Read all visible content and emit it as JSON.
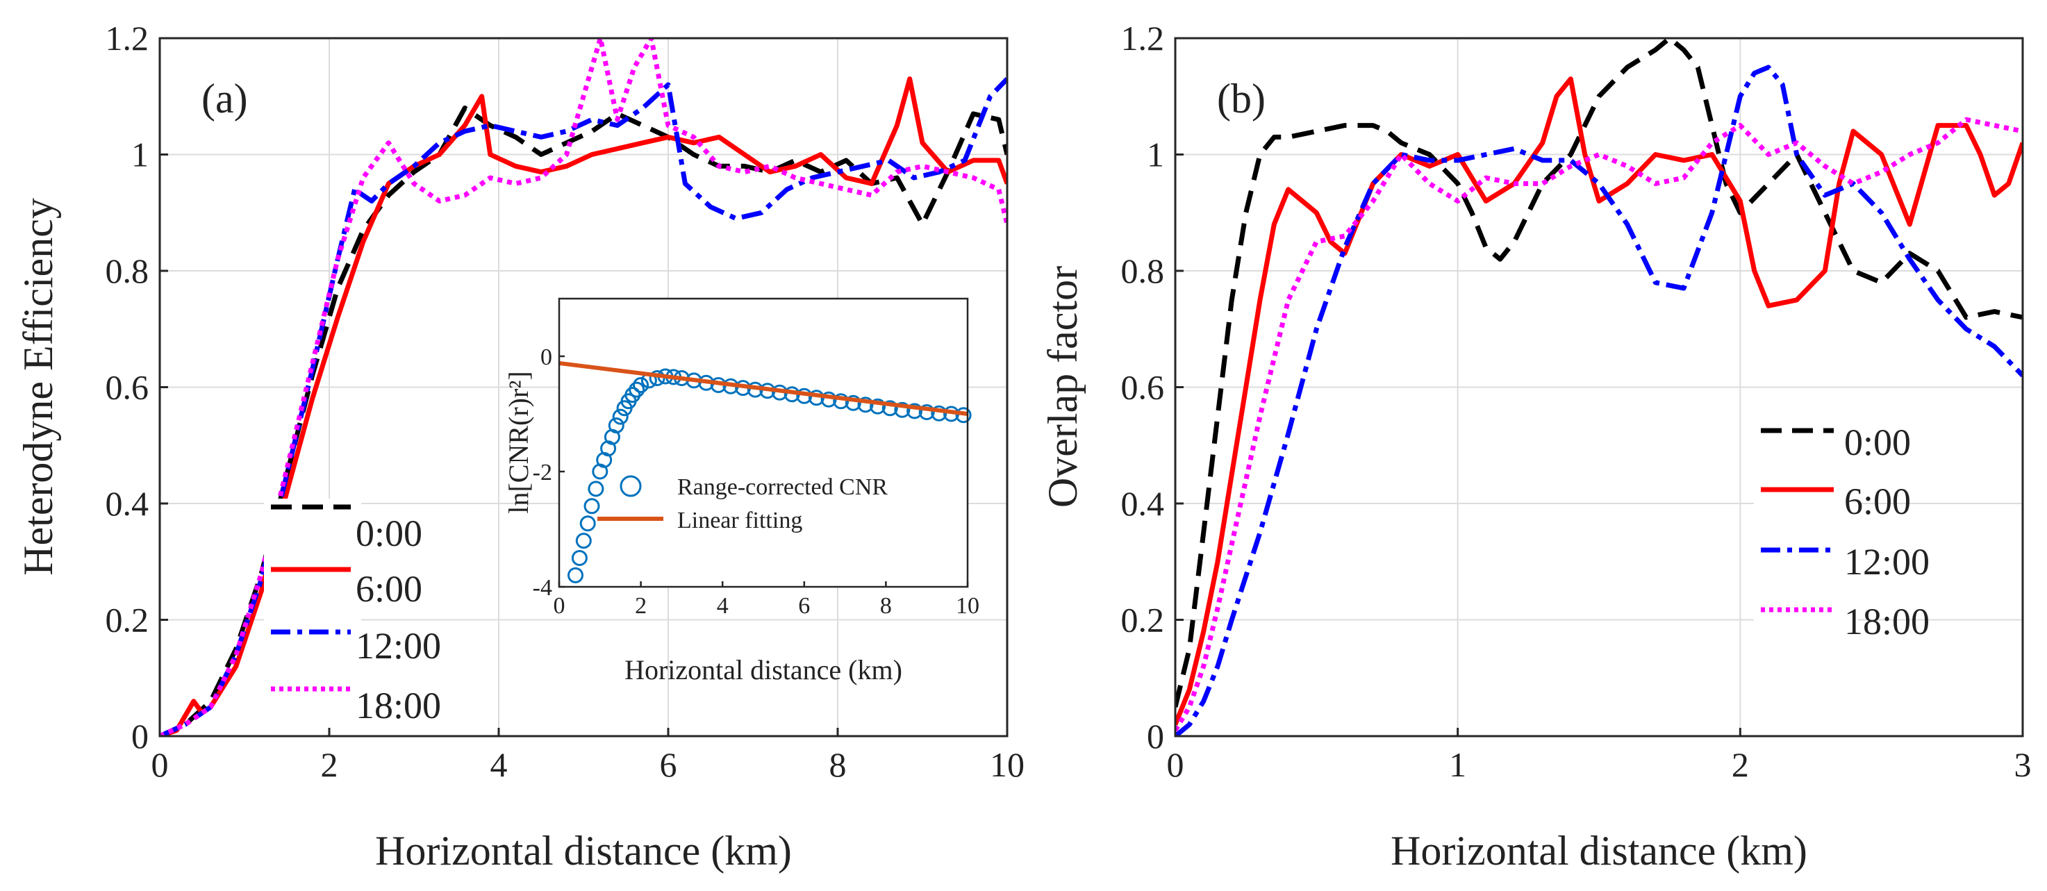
{
  "chart_data": [
    {
      "type": "line",
      "panel_label": "(a)",
      "xlabel": "Horizontal distance (km)",
      "ylabel": "Heterodyne Efficiency",
      "xlim": [
        0,
        10
      ],
      "ylim": [
        0,
        1.2
      ],
      "xticks": [
        "0",
        "2",
        "4",
        "6",
        "8",
        "10"
      ],
      "yticks": [
        "0",
        "0.2",
        "0.4",
        "0.6",
        "0.8",
        "1",
        "1.2"
      ],
      "grid": true,
      "legend": "lower-left",
      "series": [
        {
          "name": "0:00",
          "color": "#000000",
          "dash": "dashed",
          "x": [
            0,
            0.3,
            0.6,
            0.9,
            1.2,
            1.5,
            1.8,
            2.1,
            2.4,
            2.7,
            3.0,
            3.3,
            3.6,
            3.9,
            4.2,
            4.5,
            4.8,
            5.1,
            5.4,
            5.7,
            6.0,
            6.3,
            6.6,
            6.9,
            7.2,
            7.5,
            7.8,
            8.1,
            8.4,
            8.7,
            9.0,
            9.3,
            9.6,
            9.9,
            10
          ],
          "y": [
            0,
            0.02,
            0.06,
            0.15,
            0.28,
            0.45,
            0.62,
            0.77,
            0.87,
            0.93,
            0.97,
            1.0,
            1.08,
            1.05,
            1.03,
            1.0,
            1.02,
            1.04,
            1.07,
            1.05,
            1.03,
            1.0,
            0.98,
            0.98,
            0.97,
            0.99,
            0.97,
            0.99,
            0.95,
            0.96,
            0.88,
            0.97,
            1.07,
            1.06,
            1.0
          ]
        },
        {
          "name": "6:00",
          "color": "#ff0000",
          "dash": "solid",
          "x": [
            0,
            0.2,
            0.4,
            0.5,
            0.6,
            0.9,
            1.2,
            1.5,
            1.8,
            2.1,
            2.4,
            2.7,
            3.0,
            3.3,
            3.6,
            3.8,
            3.9,
            4.2,
            4.5,
            4.8,
            5.1,
            5.4,
            5.7,
            6.0,
            6.3,
            6.6,
            6.9,
            7.2,
            7.5,
            7.8,
            8.1,
            8.4,
            8.7,
            8.85,
            9.0,
            9.3,
            9.6,
            9.9,
            10
          ],
          "y": [
            0,
            0.01,
            0.06,
            0.04,
            0.05,
            0.12,
            0.25,
            0.42,
            0.58,
            0.72,
            0.85,
            0.95,
            0.98,
            1.0,
            1.05,
            1.1,
            1.0,
            0.98,
            0.97,
            0.98,
            1.0,
            1.01,
            1.02,
            1.03,
            1.02,
            1.03,
            1.0,
            0.97,
            0.98,
            1.0,
            0.96,
            0.95,
            1.05,
            1.13,
            1.02,
            0.97,
            0.99,
            0.99,
            0.95
          ]
        },
        {
          "name": "12:00",
          "color": "#0000ff",
          "dash": "dashdot",
          "x": [
            0,
            0.3,
            0.6,
            0.9,
            1.2,
            1.5,
            1.8,
            2.1,
            2.3,
            2.5,
            2.7,
            3.0,
            3.3,
            3.6,
            3.9,
            4.2,
            4.5,
            4.8,
            5.1,
            5.4,
            5.7,
            6.0,
            6.2,
            6.5,
            6.8,
            7.1,
            7.4,
            7.7,
            8.0,
            8.3,
            8.6,
            8.9,
            9.2,
            9.5,
            9.8,
            10
          ],
          "y": [
            0,
            0.02,
            0.05,
            0.14,
            0.27,
            0.45,
            0.63,
            0.82,
            0.94,
            0.92,
            0.95,
            0.98,
            1.02,
            1.04,
            1.05,
            1.04,
            1.03,
            1.04,
            1.06,
            1.05,
            1.08,
            1.12,
            0.95,
            0.91,
            0.89,
            0.9,
            0.94,
            0.96,
            0.97,
            0.98,
            0.99,
            0.96,
            0.97,
            0.99,
            1.1,
            1.13
          ]
        },
        {
          "name": "18:00",
          "color": "#ff00ff",
          "dash": "dotted",
          "x": [
            0,
            0.3,
            0.6,
            0.9,
            1.2,
            1.5,
            1.8,
            2.1,
            2.4,
            2.7,
            3.0,
            3.3,
            3.6,
            3.9,
            4.2,
            4.5,
            4.8,
            5.0,
            5.2,
            5.4,
            5.6,
            5.8,
            6.0,
            6.3,
            6.6,
            6.9,
            7.2,
            7.5,
            7.8,
            8.1,
            8.4,
            8.7,
            9.0,
            9.3,
            9.6,
            9.9,
            10
          ],
          "y": [
            0,
            0.02,
            0.05,
            0.14,
            0.28,
            0.46,
            0.64,
            0.82,
            0.96,
            1.02,
            0.95,
            0.92,
            0.93,
            0.96,
            0.95,
            0.96,
            1.0,
            1.1,
            1.2,
            1.06,
            1.15,
            1.2,
            1.05,
            1.03,
            0.98,
            0.97,
            0.98,
            0.96,
            0.95,
            0.94,
            0.93,
            0.97,
            0.98,
            0.97,
            0.96,
            0.94,
            0.88
          ]
        }
      ],
      "inset": {
        "xlabel": "Horizontal distance (km)",
        "ylabel": "ln[CNR(r)r²]",
        "xlim": [
          0,
          10
        ],
        "ylim": [
          -4,
          1
        ],
        "xticks": [
          "0",
          "2",
          "4",
          "6",
          "8",
          "10"
        ],
        "yticks": [
          "-4",
          "-2",
          "0"
        ],
        "scatter_series": {
          "name": "Range-corrected CNR",
          "color": "#0072bd",
          "x": [
            0.4,
            0.5,
            0.6,
            0.7,
            0.8,
            0.9,
            1.0,
            1.1,
            1.2,
            1.3,
            1.4,
            1.5,
            1.6,
            1.7,
            1.8,
            1.9,
            2.0,
            2.2,
            2.4,
            2.6,
            2.8,
            3.0,
            3.3,
            3.6,
            3.9,
            4.2,
            4.5,
            4.8,
            5.1,
            5.4,
            5.7,
            6.0,
            6.3,
            6.6,
            6.9,
            7.2,
            7.5,
            7.8,
            8.1,
            8.4,
            8.7,
            9.0,
            9.3,
            9.6,
            9.9
          ],
          "y": [
            -3.8,
            -3.5,
            -3.2,
            -2.9,
            -2.6,
            -2.3,
            -2.0,
            -1.8,
            -1.6,
            -1.4,
            -1.2,
            -1.05,
            -0.9,
            -0.78,
            -0.67,
            -0.58,
            -0.5,
            -0.42,
            -0.38,
            -0.35,
            -0.36,
            -0.38,
            -0.42,
            -0.46,
            -0.5,
            -0.52,
            -0.55,
            -0.58,
            -0.6,
            -0.63,
            -0.66,
            -0.69,
            -0.72,
            -0.75,
            -0.78,
            -0.81,
            -0.84,
            -0.87,
            -0.9,
            -0.93,
            -0.95,
            -0.97,
            -0.99,
            -1.0,
            -1.02
          ]
        },
        "line_series": {
          "name": "Linear fitting",
          "color": "#d95319",
          "x": [
            0,
            10
          ],
          "y": [
            -0.12,
            -1.0
          ]
        }
      }
    },
    {
      "type": "line",
      "panel_label": "(b)",
      "xlabel": "Horizontal distance (km)",
      "ylabel": "Overlap factor",
      "xlim": [
        0,
        3
      ],
      "ylim": [
        0,
        1.2
      ],
      "xticks": [
        "0",
        "1",
        "2",
        "3"
      ],
      "yticks": [
        "0",
        "0.2",
        "0.4",
        "0.6",
        "0.8",
        "1",
        "1.2"
      ],
      "grid": true,
      "legend": "center-right",
      "series": [
        {
          "name": "0:00",
          "color": "#000000",
          "dash": "dashed",
          "x": [
            0,
            0.05,
            0.1,
            0.15,
            0.2,
            0.25,
            0.3,
            0.35,
            0.4,
            0.5,
            0.6,
            0.7,
            0.75,
            0.8,
            0.9,
            1.0,
            1.05,
            1.1,
            1.15,
            1.2,
            1.3,
            1.4,
            1.5,
            1.6,
            1.7,
            1.75,
            1.8,
            1.85,
            1.9,
            1.95,
            2.0,
            2.1,
            2.2,
            2.3,
            2.4,
            2.5,
            2.6,
            2.7,
            2.8,
            2.9,
            3.0
          ],
          "y": [
            0.05,
            0.15,
            0.35,
            0.55,
            0.75,
            0.9,
            1.0,
            1.03,
            1.03,
            1.04,
            1.05,
            1.05,
            1.04,
            1.02,
            1.0,
            0.95,
            0.9,
            0.84,
            0.82,
            0.85,
            0.95,
            1.0,
            1.1,
            1.15,
            1.18,
            1.2,
            1.18,
            1.15,
            1.05,
            0.95,
            0.9,
            0.95,
            1.0,
            0.9,
            0.8,
            0.78,
            0.83,
            0.8,
            0.72,
            0.73,
            0.72
          ]
        },
        {
          "name": "6:00",
          "color": "#ff0000",
          "dash": "solid",
          "x": [
            0,
            0.05,
            0.1,
            0.15,
            0.2,
            0.25,
            0.3,
            0.35,
            0.4,
            0.45,
            0.5,
            0.55,
            0.6,
            0.7,
            0.8,
            0.9,
            1.0,
            1.1,
            1.2,
            1.3,
            1.35,
            1.4,
            1.45,
            1.5,
            1.6,
            1.7,
            1.8,
            1.9,
            2.0,
            2.05,
            2.1,
            2.2,
            2.3,
            2.35,
            2.4,
            2.5,
            2.6,
            2.7,
            2.8,
            2.85,
            2.9,
            2.95,
            3.0
          ],
          "y": [
            0.02,
            0.08,
            0.18,
            0.3,
            0.45,
            0.6,
            0.75,
            0.88,
            0.94,
            0.92,
            0.9,
            0.85,
            0.83,
            0.95,
            1.0,
            0.98,
            1.0,
            0.92,
            0.95,
            1.02,
            1.1,
            1.13,
            1.0,
            0.92,
            0.95,
            1.0,
            0.99,
            1.0,
            0.92,
            0.8,
            0.74,
            0.75,
            0.8,
            0.95,
            1.04,
            1.0,
            0.88,
            1.05,
            1.05,
            1.0,
            0.93,
            0.95,
            1.02
          ]
        },
        {
          "name": "12:00",
          "color": "#0000ff",
          "dash": "dashdot",
          "x": [
            0,
            0.05,
            0.1,
            0.15,
            0.2,
            0.3,
            0.4,
            0.5,
            0.6,
            0.7,
            0.8,
            0.9,
            1.0,
            1.1,
            1.2,
            1.3,
            1.4,
            1.5,
            1.6,
            1.7,
            1.8,
            1.9,
            2.0,
            2.05,
            2.1,
            2.15,
            2.2,
            2.3,
            2.4,
            2.5,
            2.6,
            2.7,
            2.8,
            2.9,
            3.0
          ],
          "y": [
            0,
            0.02,
            0.06,
            0.12,
            0.2,
            0.35,
            0.52,
            0.7,
            0.84,
            0.95,
            1.0,
            0.99,
            0.99,
            1.0,
            1.01,
            0.99,
            0.99,
            0.95,
            0.88,
            0.78,
            0.77,
            0.9,
            1.1,
            1.14,
            1.15,
            1.12,
            1.0,
            0.93,
            0.95,
            0.9,
            0.82,
            0.75,
            0.7,
            0.67,
            0.62
          ]
        },
        {
          "name": "18:00",
          "color": "#ff00ff",
          "dash": "dotted",
          "x": [
            0,
            0.05,
            0.1,
            0.15,
            0.2,
            0.3,
            0.4,
            0.5,
            0.6,
            0.7,
            0.8,
            0.9,
            1.0,
            1.1,
            1.2,
            1.3,
            1.4,
            1.5,
            1.6,
            1.7,
            1.8,
            1.9,
            2.0,
            2.1,
            2.2,
            2.3,
            2.4,
            2.5,
            2.6,
            2.7,
            2.8,
            2.9,
            3.0
          ],
          "y": [
            0.01,
            0.05,
            0.12,
            0.22,
            0.33,
            0.55,
            0.75,
            0.85,
            0.86,
            0.92,
            1.0,
            0.95,
            0.92,
            0.96,
            0.95,
            0.95,
            0.98,
            1.0,
            0.98,
            0.95,
            0.96,
            1.02,
            1.05,
            1.0,
            1.02,
            0.98,
            0.95,
            0.97,
            1.0,
            1.02,
            1.06,
            1.05,
            1.04
          ]
        }
      ]
    }
  ]
}
